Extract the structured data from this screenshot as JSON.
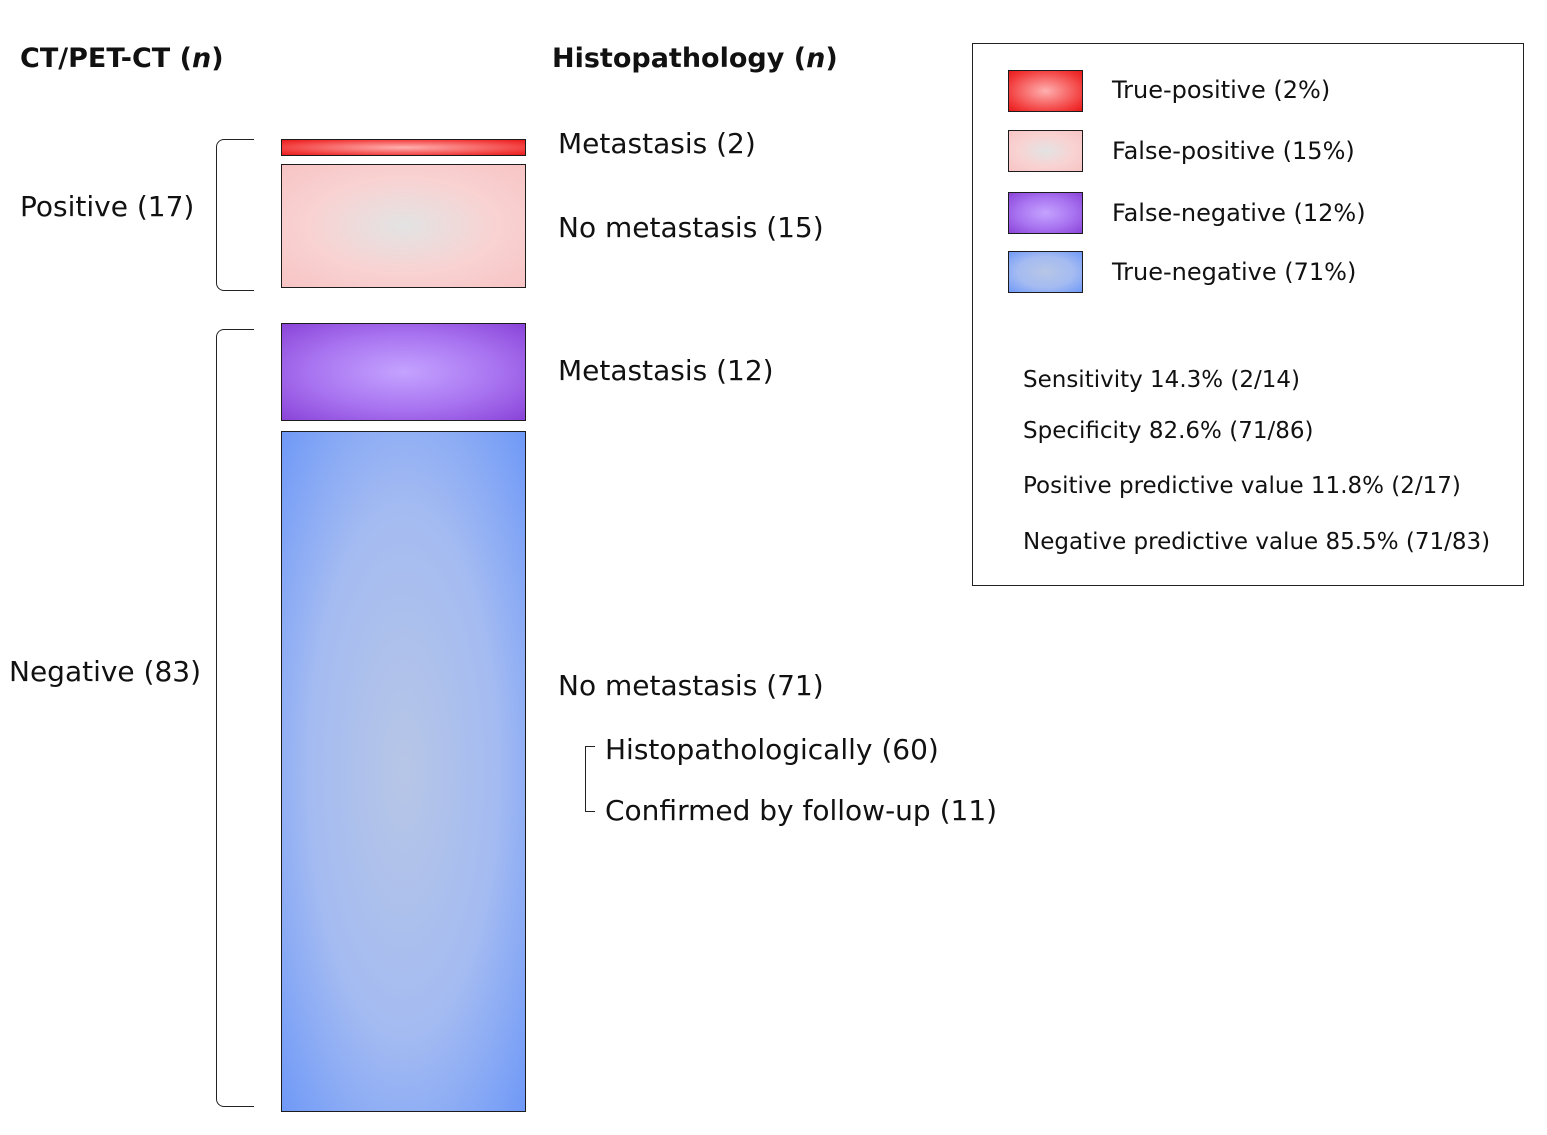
{
  "headers": {
    "left_main": "CT/PET-CT (",
    "left_n": "n",
    "left_close": ")",
    "right_main": "Histopathology (",
    "right_n": "n",
    "right_close": ")"
  },
  "groups": {
    "positive": "Positive (17)",
    "negative": "Negative (83)"
  },
  "segments": [
    {
      "key": "tp",
      "label": "Metastasis (2)",
      "count": 2
    },
    {
      "key": "fp",
      "label": "No metastasis (15)",
      "count": 15
    },
    {
      "key": "fn",
      "label": "Metastasis (12)",
      "count": 12
    },
    {
      "key": "tn",
      "label": "No metastasis (71)",
      "count": 71
    }
  ],
  "sub_breakdown": [
    {
      "label": "Histopathologically (60)",
      "count": 60
    },
    {
      "label": "Confirmed by follow-up (11)",
      "count": 11
    }
  ],
  "legend": [
    {
      "label": "True-positive (2%)",
      "color": "#e81a1a"
    },
    {
      "label": "False-positive (15%)",
      "color": "#f7c4c4"
    },
    {
      "label": "False-negative (12%)",
      "color": "#8a44d8"
    },
    {
      "label": "True-negative (71%)",
      "color": "#6f99f7"
    }
  ],
  "stats": [
    "Sensitivity 14.3% (2/14)",
    "Specificity 82.6% (71/86)",
    "Positive predictive value 11.8% (2/17)",
    "Negative predictive value 85.5% (71/83)"
  ]
}
